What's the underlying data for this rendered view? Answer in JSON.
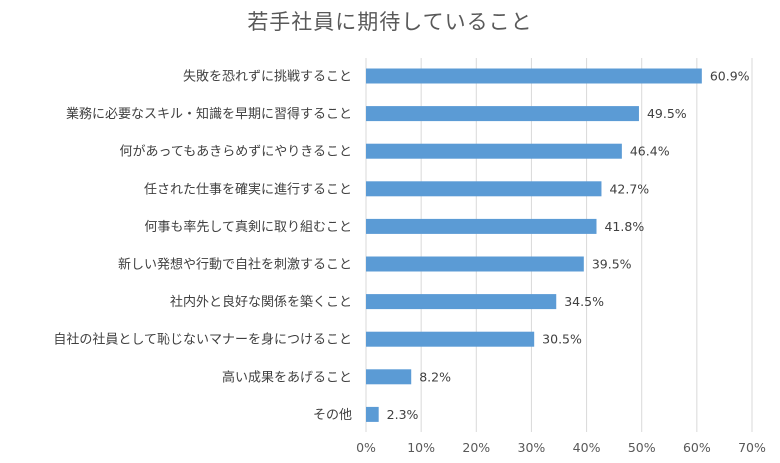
{
  "chart_data": {
    "type": "bar",
    "orientation": "horizontal",
    "title": "若手社員に期待していること",
    "categories": [
      "失敗を恐れずに挑戦すること",
      "業務に必要なスキル・知識を早期に習得すること",
      "何があってもあきらめずにやりきること",
      "任された仕事を確実に進行すること",
      "何事も率先して真剣に取り組むこと",
      "新しい発想や行動で自社を刺激すること",
      "社内外と良好な関係を築くこと",
      "自社の社員として恥じないマナーを身につけること",
      "高い成果をあげること",
      "その他"
    ],
    "values": [
      60.9,
      49.5,
      46.4,
      42.7,
      41.8,
      39.5,
      34.5,
      30.5,
      8.2,
      2.3
    ],
    "value_labels": [
      "60.9%",
      "49.5%",
      "46.4%",
      "42.7%",
      "41.8%",
      "39.5%",
      "34.5%",
      "30.5%",
      "8.2%",
      "2.3%"
    ],
    "xlim": [
      0,
      70
    ],
    "ticks": [
      0,
      10,
      20,
      30,
      40,
      50,
      60,
      70
    ],
    "tick_labels": [
      "0%",
      "10%",
      "20%",
      "30%",
      "40%",
      "50%",
      "60%",
      "70%"
    ],
    "grid": true,
    "legend": "none",
    "colors": {
      "bar": "#5b9bd5",
      "grid": "#d9d9d9",
      "text": "#404040"
    }
  }
}
